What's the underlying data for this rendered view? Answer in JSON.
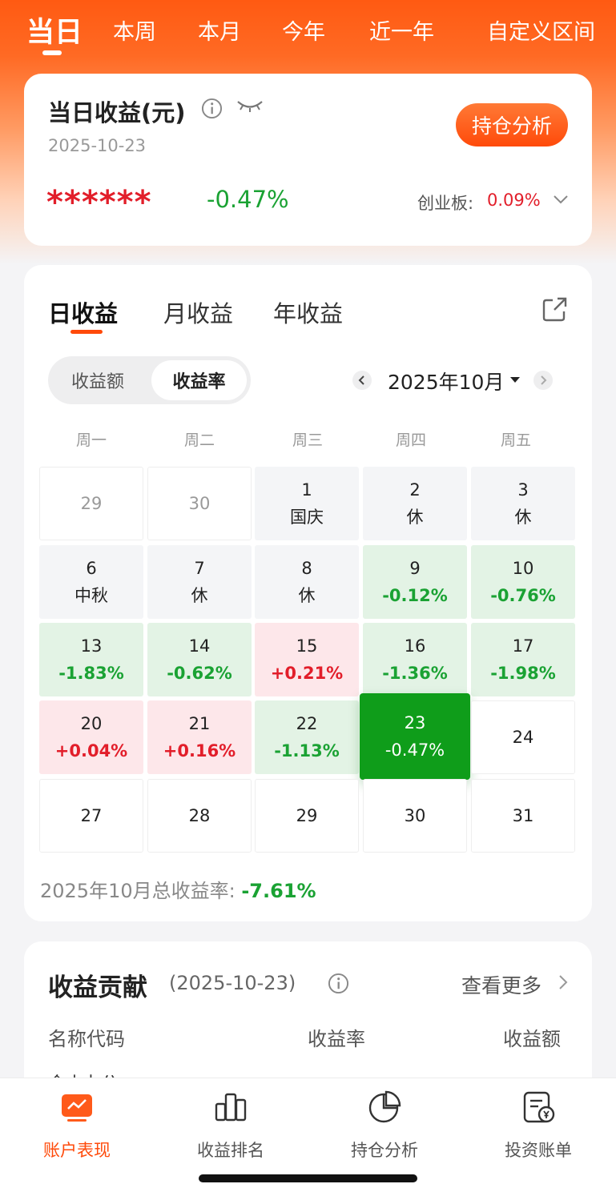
{
  "top_tabs": [
    "当日",
    "本周",
    "本月",
    "今年",
    "近一年",
    "自定义区间"
  ],
  "summary": {
    "title": "当日收益(元)",
    "date": "2025-10-23",
    "masked_amount": "******",
    "pct": "-0.47%",
    "hold_button": "持仓分析",
    "benchmark_label": "创业板:",
    "benchmark_value": "0.09%"
  },
  "calendar": {
    "tabs": [
      "日收益",
      "月收益",
      "年收益"
    ],
    "segments": [
      "收益额",
      "收益率"
    ],
    "month": "2025年10月",
    "weekdays": [
      "周一",
      "周二",
      "周三",
      "周四",
      "周五"
    ],
    "cells": [
      {
        "day": "29",
        "sub": "",
        "style": "faded"
      },
      {
        "day": "30",
        "sub": "",
        "style": "faded"
      },
      {
        "day": "1",
        "sub": "国庆",
        "style": "gray"
      },
      {
        "day": "2",
        "sub": "休",
        "style": "gray"
      },
      {
        "day": "3",
        "sub": "休",
        "style": "gray"
      },
      {
        "day": "6",
        "sub": "中秋",
        "style": "gray"
      },
      {
        "day": "7",
        "sub": "休",
        "style": "gray"
      },
      {
        "day": "8",
        "sub": "休",
        "style": "gray"
      },
      {
        "day": "9",
        "sub": "-0.12%",
        "style": "green"
      },
      {
        "day": "10",
        "sub": "-0.76%",
        "style": "green"
      },
      {
        "day": "13",
        "sub": "-1.83%",
        "style": "green"
      },
      {
        "day": "14",
        "sub": "-0.62%",
        "style": "green"
      },
      {
        "day": "15",
        "sub": "+0.21%",
        "style": "red"
      },
      {
        "day": "16",
        "sub": "-1.36%",
        "style": "green"
      },
      {
        "day": "17",
        "sub": "-1.98%",
        "style": "green"
      },
      {
        "day": "20",
        "sub": "+0.04%",
        "style": "red"
      },
      {
        "day": "21",
        "sub": "+0.16%",
        "style": "red"
      },
      {
        "day": "22",
        "sub": "-1.13%",
        "style": "green"
      },
      {
        "day": "23",
        "sub": "-0.47%",
        "style": "sel"
      },
      {
        "day": "24",
        "sub": "",
        "style": "blank"
      },
      {
        "day": "27",
        "sub": "",
        "style": "blank"
      },
      {
        "day": "28",
        "sub": "",
        "style": "blank"
      },
      {
        "day": "29",
        "sub": "",
        "style": "blank"
      },
      {
        "day": "30",
        "sub": "",
        "style": "blank"
      },
      {
        "day": "31",
        "sub": "",
        "style": "blank"
      }
    ],
    "total_label": "2025年10月总收益率:",
    "total_value": "-7.61%"
  },
  "contribution": {
    "title": "收益贡献",
    "date": "(2025-10-23)",
    "more": "查看更多",
    "headers": [
      "名称代码",
      "收益率",
      "收益额"
    ],
    "cut_row": "金山办公"
  },
  "bottom_nav": [
    {
      "label": "账户表现",
      "icon": "chart-screen-icon",
      "active": true
    },
    {
      "label": "收益排名",
      "icon": "bar-chart-icon",
      "active": false
    },
    {
      "label": "持仓分析",
      "icon": "pie-chart-icon",
      "active": false
    },
    {
      "label": "投资账单",
      "icon": "bill-icon",
      "active": false
    }
  ],
  "colors": {
    "accent": "#ff4a0a",
    "down": "#1aa233",
    "up": "#e21e2a",
    "selected": "#0f9d1a"
  }
}
